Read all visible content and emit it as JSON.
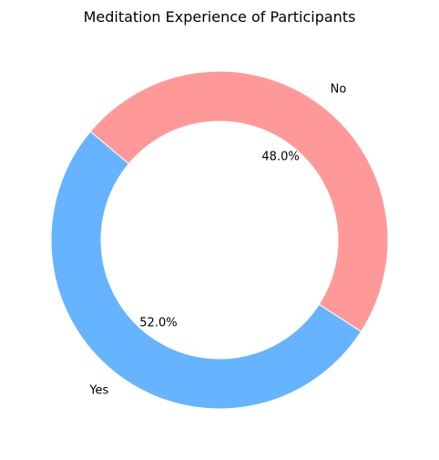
{
  "chart_data": {
    "type": "pie",
    "title": "Meditation Experience of Participants",
    "donut": true,
    "slices": [
      {
        "label": "Yes",
        "value": 52.0,
        "percent_label": "52.0%",
        "color": "#66b3ff"
      },
      {
        "label": "No",
        "value": 48.0,
        "percent_label": "48.0%",
        "color": "#ff9999"
      }
    ],
    "start_angle_deg": 140,
    "direction": "counterclockwise",
    "legend": "none"
  }
}
